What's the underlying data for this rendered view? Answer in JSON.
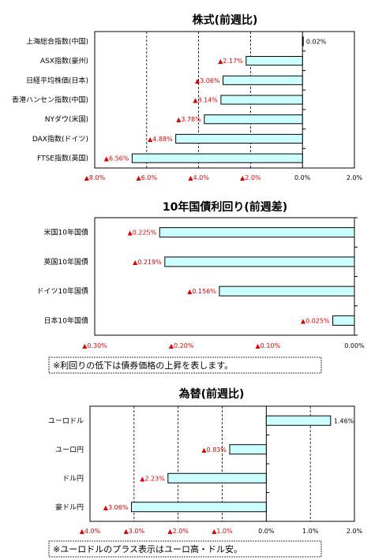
{
  "chart_data": [
    {
      "type": "bar",
      "orientation": "horizontal",
      "title": "株式(前週比)",
      "categories": [
        "上海総合指数(中国)",
        "ASX指数(豪州)",
        "日経平均株価(日本)",
        "香港ハンセン指数(中国)",
        "NYダウ(米国)",
        "DAX指数(ドイツ)",
        "FTSE指数(英国)"
      ],
      "values": [
        0.02,
        -2.17,
        -3.06,
        -3.14,
        -3.78,
        -4.88,
        -6.56
      ],
      "value_labels": [
        "0.02%",
        "▲2.17%",
        "▲3.06%",
        "▲3.14%",
        "▲3.78%",
        "▲4.88%",
        "▲6.56%"
      ],
      "xlim": [
        -8,
        2
      ],
      "ticks": [
        -8,
        -6,
        -4,
        -2,
        0,
        2
      ],
      "tick_labels": [
        "▲8.0%",
        "▲6.0%",
        "▲4.0%",
        "▲2.0%",
        "0.0%",
        "2.0%"
      ],
      "grid": true,
      "note": ""
    },
    {
      "type": "bar",
      "orientation": "horizontal",
      "title": "10年国債利回り(前週差)",
      "categories": [
        "米国10年国債",
        "英国10年国債",
        "ドイツ10年国債",
        "日本10年国債"
      ],
      "values": [
        -0.225,
        -0.219,
        -0.156,
        -0.025
      ],
      "value_labels": [
        "▲0.225%",
        "▲0.219%",
        "▲0.156%",
        "▲0.025%"
      ],
      "xlim": [
        -0.3,
        0
      ],
      "ticks": [
        -0.3,
        -0.2,
        -0.1,
        0
      ],
      "tick_labels": [
        "▲0.30%",
        "▲0.20%",
        "▲0.10%",
        "0.00%"
      ],
      "grid": false,
      "note": "※利回りの低下は債券価格の上昇を表します。"
    },
    {
      "type": "bar",
      "orientation": "horizontal",
      "title": "為替(前週比)",
      "categories": [
        "ユーロドル",
        "ユーロ円",
        "ドル円",
        "豪ドル円"
      ],
      "values": [
        1.46,
        -0.83,
        -2.23,
        -3.06
      ],
      "value_labels": [
        "1.46%",
        "▲0.83%",
        "▲2.23%",
        "▲3.06%"
      ],
      "xlim": [
        -4,
        2
      ],
      "ticks": [
        -4,
        -3,
        -2,
        -1,
        0,
        1,
        2
      ],
      "tick_labels": [
        "▲4.0%",
        "▲3.0%",
        "▲2.0%",
        "▲1.0%",
        "0.0%",
        "1.0%",
        "2.0%"
      ],
      "grid": true,
      "note": "※ユーロドルのプラス表示はユーロ高・ドル安。"
    }
  ],
  "colors": {
    "bar_fill": "#ccffff",
    "bar_stroke": "#000000",
    "negative_label": "#e00000",
    "grid": "#000000"
  }
}
